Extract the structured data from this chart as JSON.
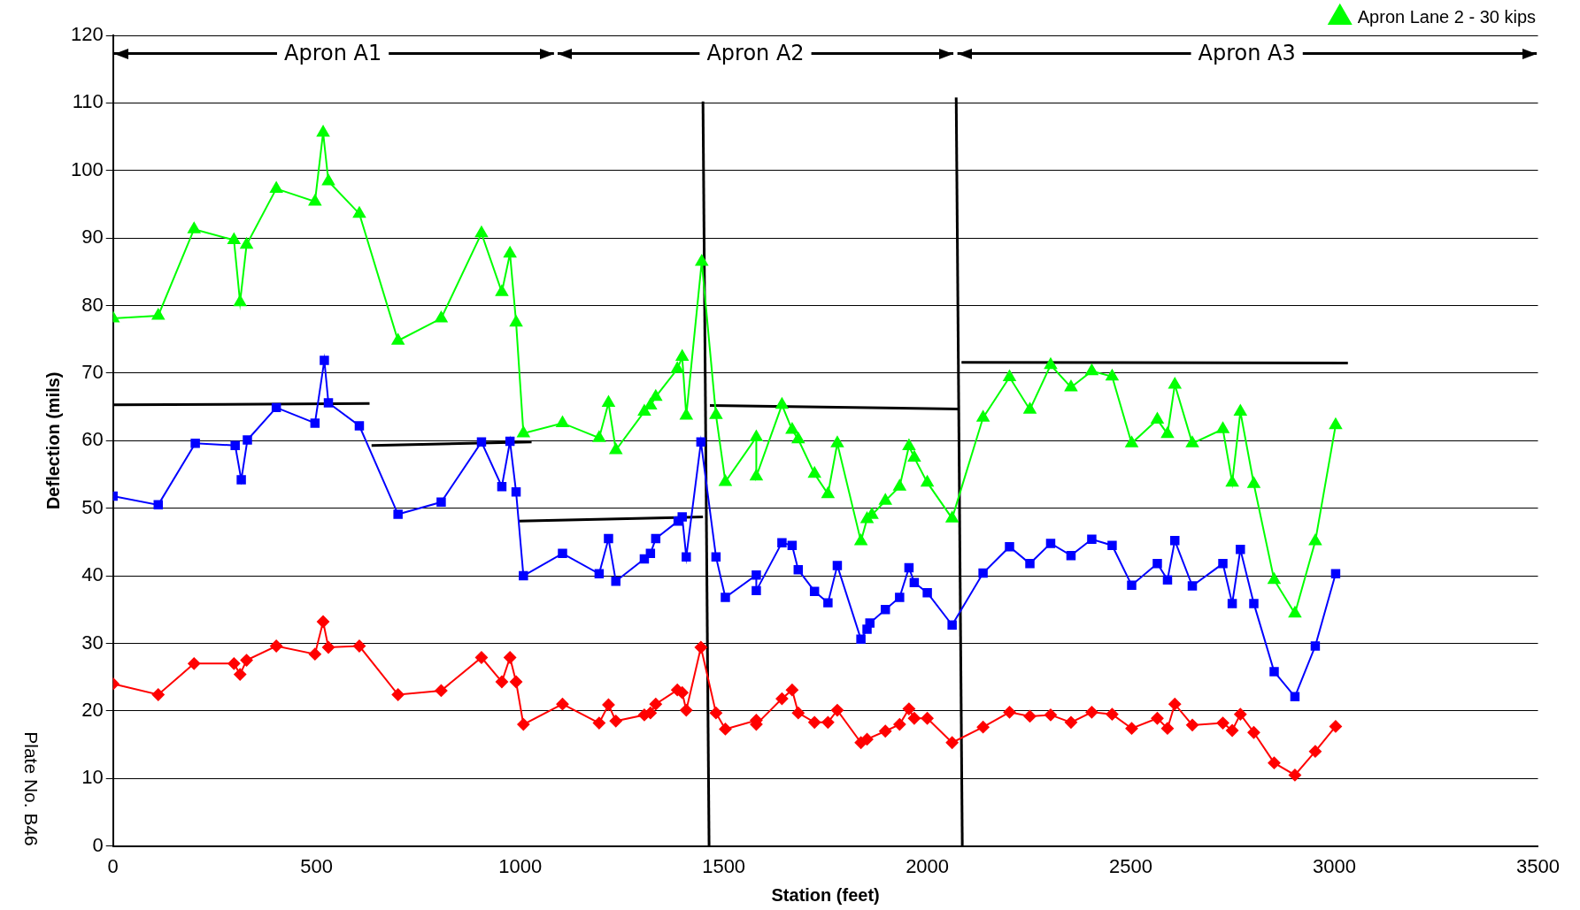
{
  "chart_data": {
    "type": "line",
    "xlabel": "Station (feet)",
    "ylabel": "Deflection (mils)",
    "xlim": [
      0,
      3500
    ],
    "xticks": [
      0,
      500,
      1000,
      1500,
      2000,
      2500,
      3000,
      3500
    ],
    "ylim": [
      0,
      120
    ],
    "yticks": [
      0,
      10,
      20,
      30,
      40,
      50,
      60,
      70,
      80,
      90,
      100,
      110,
      120
    ],
    "grid": "y",
    "legend": "top right",
    "annotations": [
      "Plate No. B46",
      {
        "text": "Apron A1",
        "x": 540,
        "y": 117.3
      },
      {
        "text": "Apron A2",
        "x": 1578,
        "y": 117.3
      },
      {
        "text": "Apron A3",
        "x": 2785,
        "y": 117.3
      }
    ],
    "series": [
      {
        "color": "#ff0000",
        "marker": "diamond",
        "x": [
          0,
          111,
          199,
          297,
          312,
          328,
          401,
          496,
          516,
          529,
          605,
          700,
          806,
          905,
          955,
          975,
          990,
          1008,
          1104,
          1194,
          1217,
          1235,
          1305,
          1320,
          1333,
          1386,
          1398,
          1408,
          1444,
          1481,
          1504,
          1580,
          1580,
          1643,
          1668,
          1683,
          1723,
          1756,
          1779,
          1837,
          1852,
          1897,
          1932,
          1955,
          1968,
          2000,
          2061,
          2137,
          2202,
          2252,
          2303,
          2353,
          2404,
          2454,
          2502,
          2565,
          2590,
          2608,
          2651,
          2726,
          2749,
          2769,
          2802,
          2852,
          2903,
          2953,
          3003
        ],
        "values": [
          24,
          22.4,
          27,
          27,
          25.4,
          27.5,
          29.6,
          28.4,
          33.2,
          29.4,
          29.6,
          22.4,
          23,
          27.9,
          24.3,
          27.9,
          24.3,
          18,
          21,
          18.2,
          20.9,
          18.5,
          19.4,
          19.7,
          21,
          23.1,
          22.7,
          20.1,
          29.4,
          19.7,
          17.3,
          18.6,
          18,
          21.8,
          23.1,
          19.7,
          18.3,
          18.3,
          20.1,
          15.3,
          15.8,
          17,
          18,
          20.3,
          18.9,
          18.9,
          15.3,
          17.6,
          19.8,
          19.2,
          19.4,
          18.3,
          19.8,
          19.5,
          17.4,
          18.9,
          17.4,
          21,
          17.9,
          18.2,
          17.1,
          19.5,
          16.8,
          12.3,
          10.5,
          14,
          17.7
        ]
      },
      {
        "color": "#0000ff",
        "marker": "square",
        "x": [
          0,
          111,
          202,
          300,
          315,
          330,
          401,
          496,
          519,
          529,
          605,
          700,
          806,
          905,
          955,
          975,
          990,
          1008,
          1104,
          1194,
          1217,
          1235,
          1305,
          1320,
          1333,
          1388,
          1398,
          1408,
          1444,
          1481,
          1504,
          1580,
          1580,
          1643,
          1668,
          1683,
          1723,
          1756,
          1779,
          1837,
          1852,
          1859,
          1897,
          1932,
          1955,
          1968,
          2000,
          2061,
          2137,
          2202,
          2252,
          2303,
          2353,
          2404,
          2454,
          2502,
          2565,
          2590,
          2608,
          2651,
          2726,
          2749,
          2769,
          2802,
          2852,
          2903,
          2953,
          3003
        ],
        "values": [
          51.8,
          50.5,
          59.6,
          59.3,
          54.2,
          60.1,
          64.9,
          62.6,
          71.9,
          65.6,
          62.2,
          49.1,
          50.9,
          59.8,
          53.2,
          59.9,
          52.4,
          40,
          43.3,
          40.3,
          45.5,
          39.2,
          42.5,
          43.3,
          45.5,
          48.1,
          48.7,
          42.8,
          59.8,
          42.8,
          36.8,
          40.1,
          37.8,
          44.9,
          44.5,
          40.9,
          37.7,
          36,
          41.5,
          30.6,
          32.1,
          33,
          35,
          36.8,
          41.2,
          39,
          37.5,
          32.7,
          40.4,
          44.3,
          41.8,
          44.8,
          43,
          45.4,
          44.5,
          38.6,
          41.8,
          39.4,
          45.2,
          38.5,
          41.8,
          35.9,
          43.9,
          35.9,
          25.8,
          22.1,
          29.6,
          40.3
        ]
      },
      {
        "name": "Apron Lane 2 - 30 kips",
        "color": "#00ff00",
        "marker": "triangle",
        "x": [
          0,
          111,
          199,
          297,
          312,
          328,
          401,
          496,
          516,
          529,
          605,
          700,
          806,
          905,
          955,
          975,
          990,
          1008,
          1104,
          1194,
          1217,
          1235,
          1305,
          1320,
          1333,
          1386,
          1398,
          1408,
          1446,
          1481,
          1504,
          1580,
          1580,
          1643,
          1668,
          1683,
          1723,
          1756,
          1779,
          1837,
          1852,
          1864,
          1897,
          1932,
          1955,
          1968,
          2000,
          2061,
          2137,
          2202,
          2252,
          2303,
          2353,
          2404,
          2454,
          2502,
          2565,
          2590,
          2608,
          2651,
          2726,
          2749,
          2769,
          2802,
          2852,
          2903,
          2953,
          3003
        ],
        "values": [
          78.1,
          78.5,
          91.3,
          89.7,
          80.5,
          89,
          97.3,
          95.4,
          105.6,
          98.4,
          93.6,
          74.8,
          78.1,
          90.7,
          82,
          87.7,
          77.5,
          61.1,
          62.6,
          60.4,
          65.6,
          58.6,
          64.3,
          65.2,
          66.5,
          70.6,
          72.4,
          63.7,
          86.5,
          63.8,
          53.9,
          60.5,
          54.7,
          65.3,
          61.6,
          60.2,
          55.1,
          52.1,
          59.6,
          45.1,
          48.4,
          49,
          51.1,
          53.2,
          59.2,
          57.5,
          53.8,
          48.5,
          63.4,
          69.4,
          64.6,
          71.2,
          67.9,
          70.3,
          69.5,
          59.6,
          63.1,
          61,
          68.3,
          59.6,
          61.7,
          53.8,
          64.3,
          53.6,
          39.4,
          34.4,
          45.1,
          62.3
        ]
      },
      {
        "type": "line",
        "color": "#000000",
        "marker": "none",
        "x": [
          2,
          1083
        ],
        "values": [
          117.3,
          117.3
        ]
      },
      {
        "type": "line",
        "color": "#000000",
        "marker": "none",
        "x": [
          1092,
          2064
        ],
        "values": [
          117.3,
          117.3
        ]
      },
      {
        "type": "line",
        "color": "#000000",
        "marker": "none",
        "x": [
          2074,
          3497
        ],
        "values": [
          117.3,
          117.3
        ]
      },
      {
        "type": "line",
        "color": "#000000",
        "marker": "none",
        "x": [
          0,
          630
        ],
        "values": [
          65.3,
          65.5
        ]
      },
      {
        "type": "line",
        "color": "#000000",
        "marker": "none",
        "x": [
          635,
          1028
        ],
        "values": [
          59.3,
          59.8
        ]
      },
      {
        "type": "line",
        "color": "#000000",
        "marker": "none",
        "x": [
          995,
          1449
        ],
        "values": [
          48.1,
          48.7
        ]
      },
      {
        "type": "line",
        "color": "#000000",
        "marker": "none",
        "x": [
          1466,
          2076
        ],
        "values": [
          65.2,
          64.7
        ]
      },
      {
        "type": "line",
        "color": "#000000",
        "marker": "none",
        "x": [
          2084,
          3033
        ],
        "values": [
          71.6,
          71.5
        ]
      },
      {
        "type": "line",
        "color": "#000000",
        "marker": "none",
        "x": [
          1449,
          1464
        ],
        "values": [
          110.2,
          0
        ]
      },
      {
        "type": "line",
        "color": "#000000",
        "marker": "none",
        "x": [
          2071,
          2086
        ],
        "values": [
          110.8,
          0
        ]
      }
    ]
  }
}
